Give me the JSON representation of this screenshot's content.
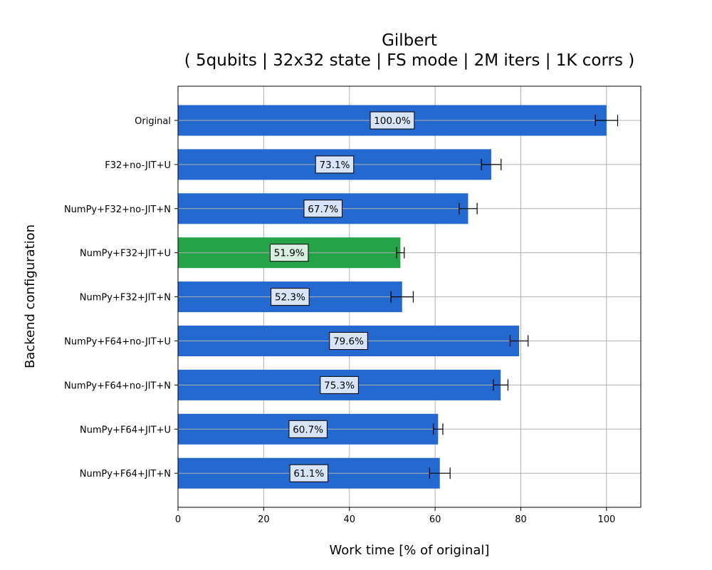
{
  "chart_data": {
    "type": "bar",
    "orientation": "horizontal",
    "title": [
      "Gilbert",
      "( 5qubits | 32x32 state | FS mode | 2M iters | 1K corrs )"
    ],
    "xlabel": "Work time [% of original]",
    "ylabel": "Backend configuration",
    "xlim": [
      0,
      108
    ],
    "xticks": [
      0,
      20,
      40,
      60,
      80,
      100
    ],
    "grid": true,
    "categories": [
      "Original",
      "F32+no-JIT+U",
      "NumPy+F32+no-JIT+N",
      "NumPy+F32+JIT+U",
      "NumPy+F32+JIT+N",
      "NumPy+F64+no-JIT+U",
      "NumPy+F64+no-JIT+N",
      "NumPy+F64+JIT+U",
      "NumPy+F64+JIT+N"
    ],
    "values": [
      100.0,
      73.1,
      67.7,
      51.9,
      52.3,
      79.6,
      75.3,
      60.7,
      61.1
    ],
    "errors": [
      2.6,
      2.3,
      2.1,
      0.9,
      2.6,
      2.1,
      1.7,
      1.1,
      2.4
    ],
    "labels": [
      "100.0%",
      "73.1%",
      "67.7%",
      "51.9%",
      "52.3%",
      "79.6%",
      "75.3%",
      "60.7%",
      "61.1%"
    ],
    "highlight_index": 3,
    "colors": {
      "bar": "#2369cf",
      "highlight": "#24a348",
      "label_bg": "#d8e5f8",
      "highlight_label_bg": "#d9f0df",
      "grid": "#b0b0b0"
    }
  }
}
